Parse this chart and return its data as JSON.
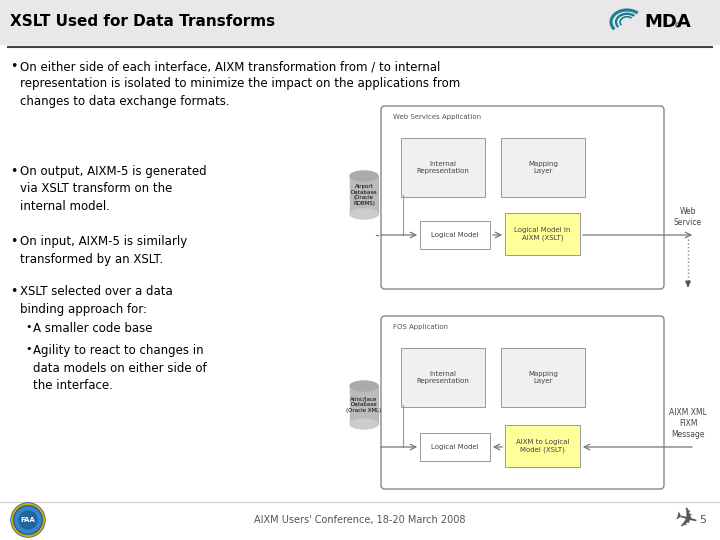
{
  "title": "XSLT Used for Data Transforms",
  "title_font_size": 11,
  "footer_text": "AIXM Users' Conference, 18-20 March 2008",
  "bullet1": "On either side of each interface, AIXM transformation from / to internal\nrepresentation is isolated to minimize the impact on the applications from\nchanges to data exchange formats.",
  "bullet2": "On output, AIXM-5 is generated\nvia XSLT transform on the\ninternal model.",
  "bullet3": "On input, AIXM-5 is similarly\ntransformed by an XSLT.",
  "bullet4": "XSLT selected over a data\nbinding approach for:",
  "subbullet1": "A smaller code base",
  "subbullet2": "Agility to react to changes in\ndata models on either side of\nthe interface.",
  "diagram1_title": "Web Services Application",
  "diagram1_box1": "Internal\nRepresentation",
  "diagram1_box2": "Mapping\nLayer",
  "diagram1_db": "Airport\nDatabase\n(Oracle\nRDBMS)",
  "diagram1_model": "Logical Model",
  "diagram1_xslt": "Logical Model in\nAIXM (XSLT)",
  "diagram1_right": "Web\nService",
  "diagram2_title": "FOS Application",
  "diagram2_box1": "Internal\nRepresentation",
  "diagram2_box2": "Mapping\nLayer",
  "diagram2_db": "Arinc/Jace\nDatabase\n(Oracle XML)",
  "diagram2_model": "Logical Model",
  "diagram2_xslt": "AIXM to Logical\nModel (XSLT)",
  "diagram_right2": "AIXM XML\nFIXM\nMessage",
  "header_bg": "#e8e8e8",
  "header_line_color": "#444444",
  "diag_outer_color": "#888888",
  "diag_inner_bg": "#f0f0f0",
  "xslt_fill": "#ffff99",
  "db_fill": "#bbbbbb",
  "arrow_color": "#777777"
}
